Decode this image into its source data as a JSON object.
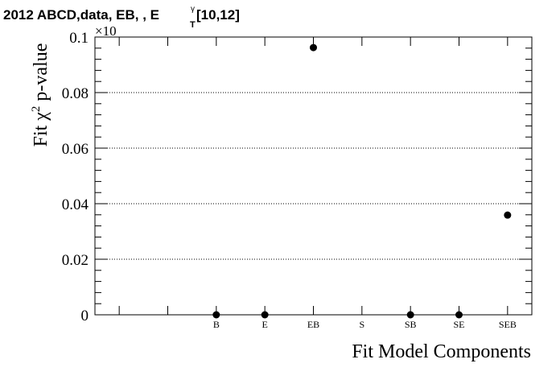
{
  "chart_data": {
    "type": "scatter",
    "title": "2012 ABCD,data, EB, , E",
    "title_sup": "γ",
    "title_sub": "T",
    "title_suffix": " [10,12]",
    "xlabel": "Fit Model Components",
    "ylabel": "Fit χ",
    "ylabel_sup": "2",
    "ylabel_suffix": " p-value",
    "exponent_label": "×10",
    "categories": [
      "",
      "",
      "B",
      "E",
      "EB",
      "S",
      "SB",
      "SE",
      "SEB"
    ],
    "values": [
      null,
      null,
      0,
      0,
      0.0962,
      null,
      0,
      0,
      0.0359
    ],
    "ylim": [
      0,
      0.1
    ],
    "yticks": [
      0,
      0.02,
      0.04,
      0.06,
      0.08,
      0.1
    ],
    "ytick_labels": [
      "0",
      "0.02",
      "0.04",
      "0.06",
      "0.08",
      "0.1"
    ],
    "grid": "horizontal dotted",
    "marker_color": "#000000"
  }
}
